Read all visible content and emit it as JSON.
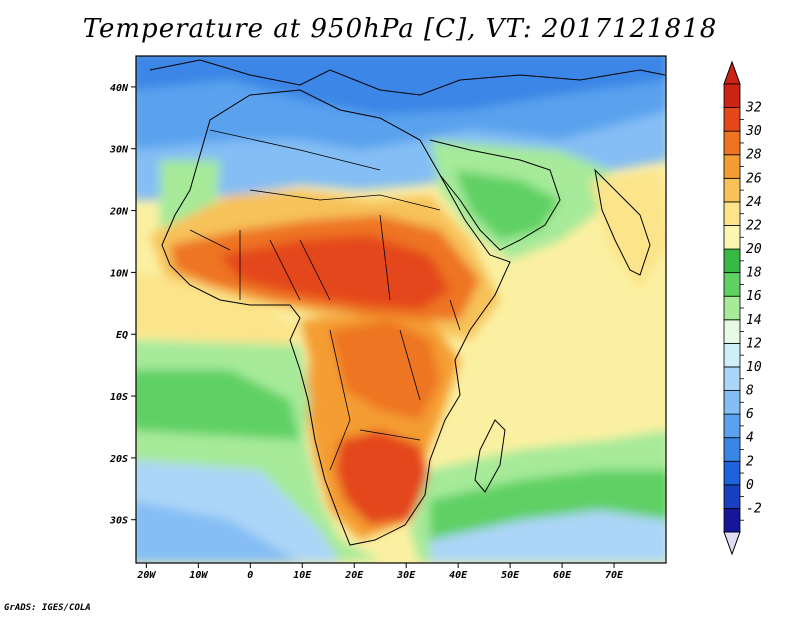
{
  "title": "Temperature at 950hPa [C], VT: 2017121818",
  "credit": "GrADS: IGES/COLA",
  "map": {
    "lon_range": [
      -22,
      80
    ],
    "lat_range": [
      -37,
      45
    ],
    "x_ticks": [
      {
        "lon": -20,
        "label": "20W"
      },
      {
        "lon": -10,
        "label": "10W"
      },
      {
        "lon": 0,
        "label": "0"
      },
      {
        "lon": 10,
        "label": "10E"
      },
      {
        "lon": 20,
        "label": "20E"
      },
      {
        "lon": 30,
        "label": "30E"
      },
      {
        "lon": 40,
        "label": "40E"
      },
      {
        "lon": 50,
        "label": "50E"
      },
      {
        "lon": 60,
        "label": "60E"
      },
      {
        "lon": 70,
        "label": "70E"
      }
    ],
    "y_ticks": [
      {
        "lat": 40,
        "label": "40N"
      },
      {
        "lat": 30,
        "label": "30N"
      },
      {
        "lat": 20,
        "label": "20N"
      },
      {
        "lat": 10,
        "label": "10N"
      },
      {
        "lat": 0,
        "label": "EQ"
      },
      {
        "lat": -10,
        "label": "10S"
      },
      {
        "lat": -20,
        "label": "20S"
      },
      {
        "lat": -30,
        "label": "30S"
      }
    ]
  },
  "colorbar": {
    "levels": [
      "-2",
      "0",
      "2",
      "4",
      "6",
      "8",
      "10",
      "12",
      "14",
      "16",
      "18",
      "20",
      "22",
      "24",
      "26",
      "28",
      "30",
      "32"
    ],
    "colors": [
      "#16169a",
      "#1a3fc0",
      "#1e62dc",
      "#3a86e6",
      "#5aa2ee",
      "#84bef4",
      "#acd6f8",
      "#ceeef8",
      "#e6fae6",
      "#a6ea9a",
      "#5ed064",
      "#38b844",
      "#fbf7b0",
      "#fbe48a",
      "#f7c25a",
      "#f49d32",
      "#ee7420",
      "#e4471a",
      "#cc2414"
    ],
    "under_color": "#e2dcf6",
    "over_color": "#cc2414"
  },
  "field": {
    "background_sea": "#fbf0a2",
    "regions": [
      {
        "name": "mediterranean-cool",
        "color": "#5aa2ee"
      },
      {
        "name": "sahara-cool",
        "color": "#84bef4"
      },
      {
        "name": "arabia-green",
        "color": "#a6ea9a"
      },
      {
        "name": "sahel-warm",
        "color": "#f7c25a"
      },
      {
        "name": "sahel-hot",
        "color": "#ee7420"
      },
      {
        "name": "central-hot",
        "color": "#e4471a"
      },
      {
        "name": "south-hot",
        "color": "#e4471a"
      },
      {
        "name": "southern-ocean",
        "color": "#acd6f8"
      }
    ]
  }
}
